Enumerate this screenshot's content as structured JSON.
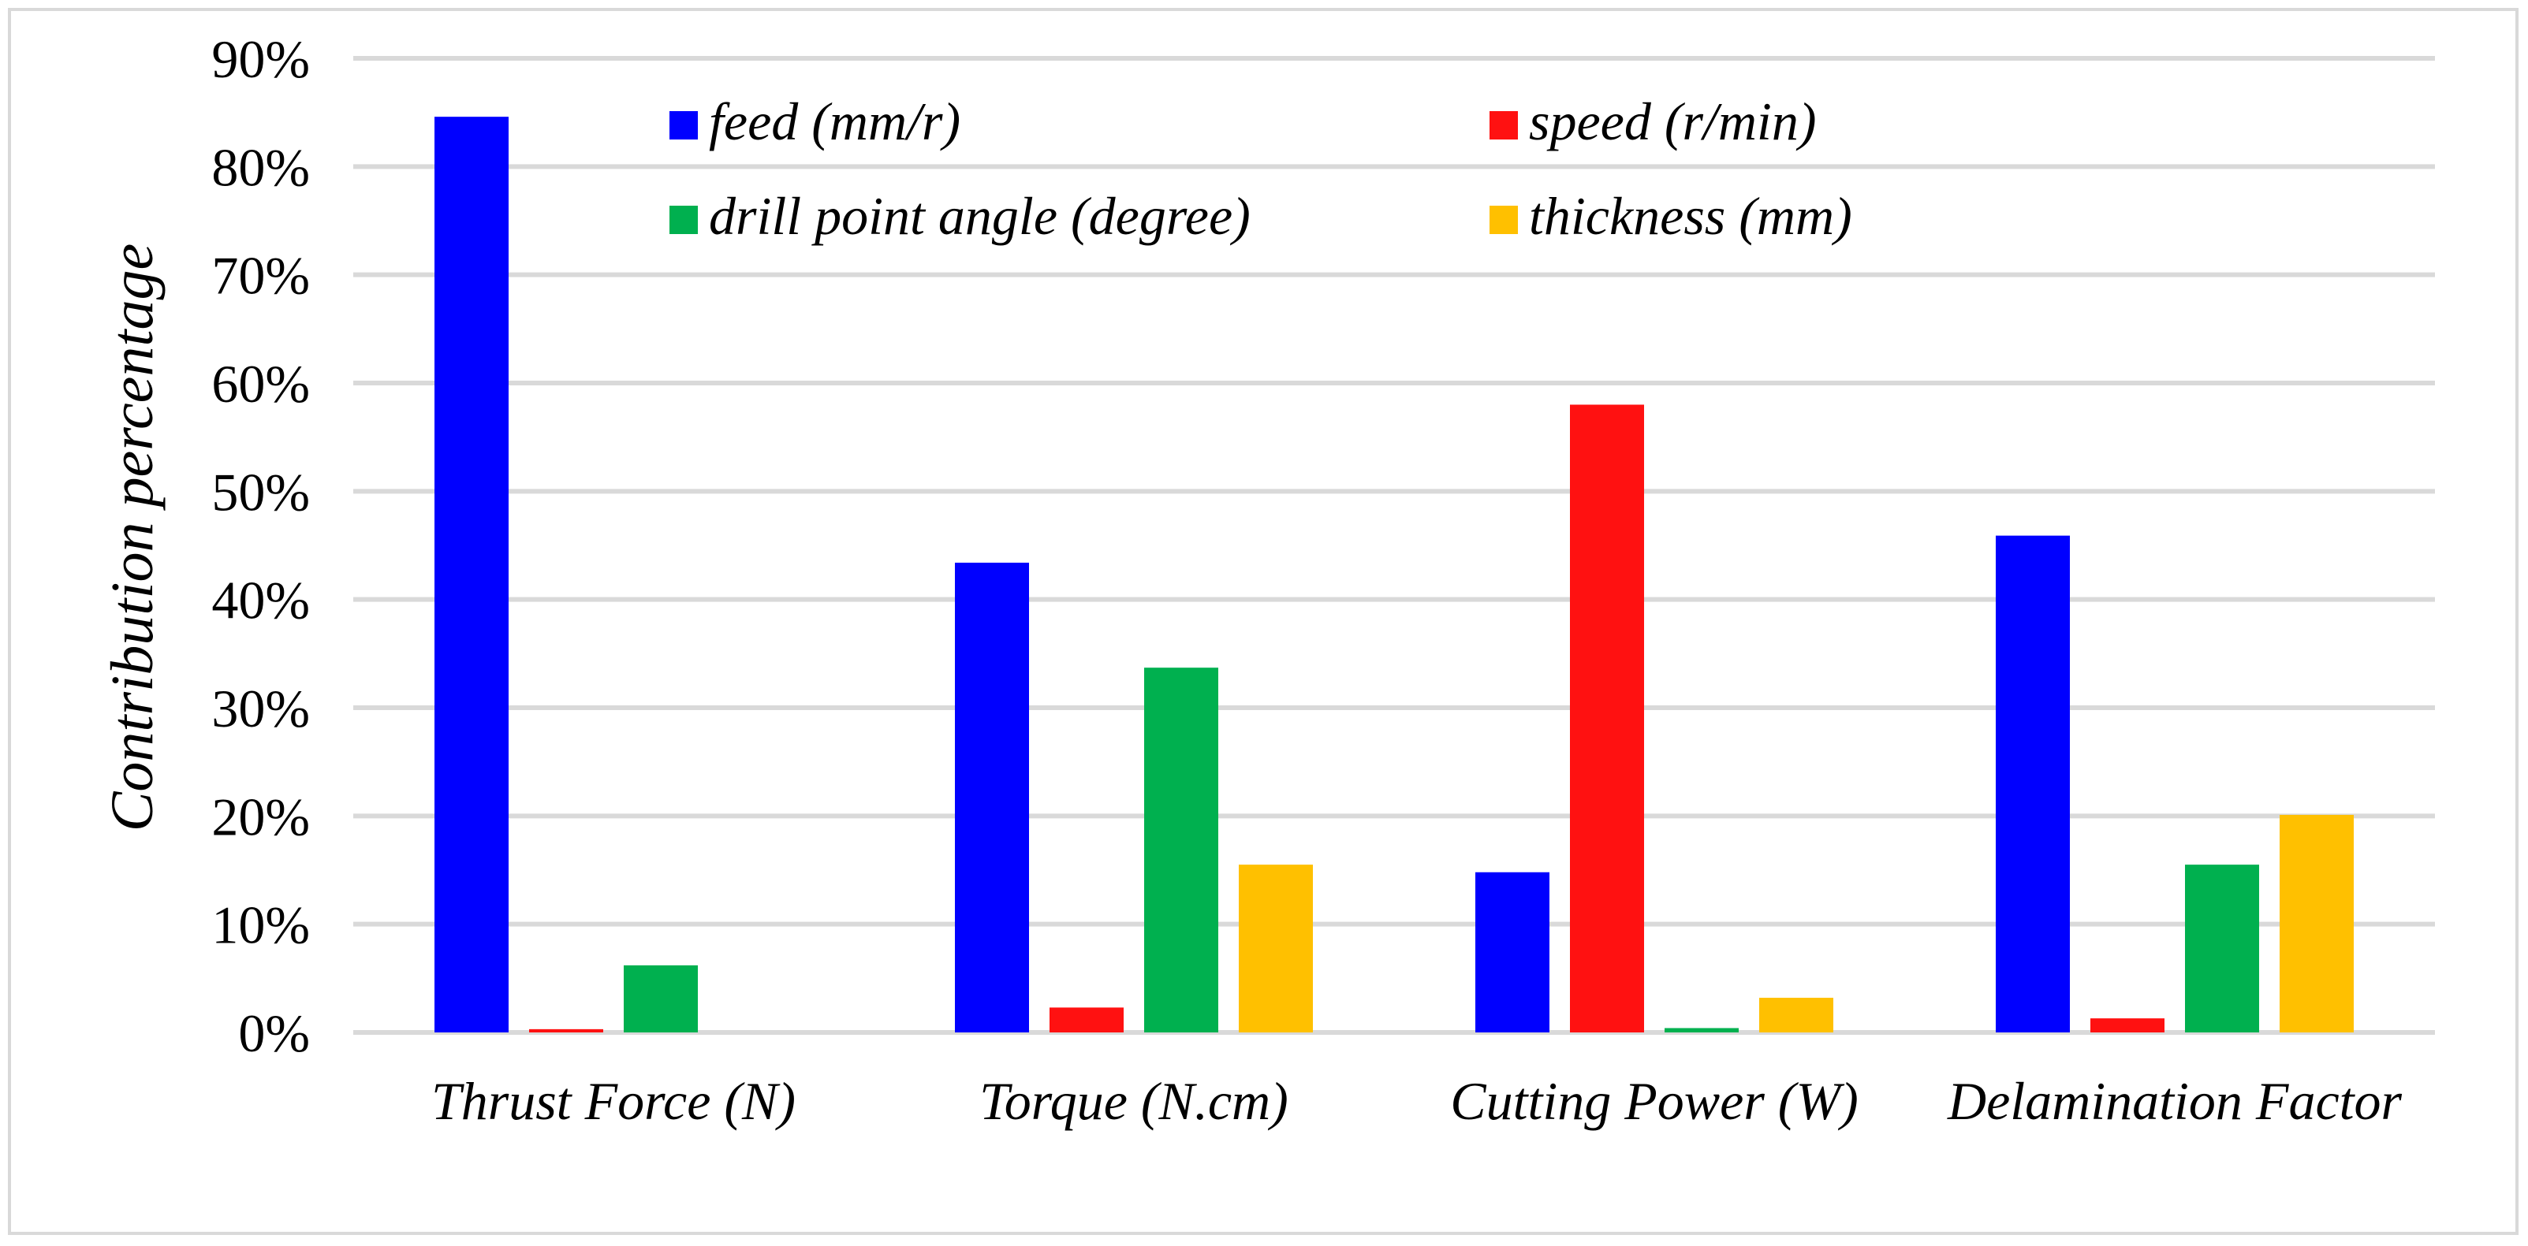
{
  "chart_data": {
    "type": "bar",
    "title": "",
    "xlabel": "",
    "ylabel": "Contribution percentage",
    "ylim": [
      0,
      90
    ],
    "yticks": [
      "0%",
      "10%",
      "20%",
      "30%",
      "40%",
      "50%",
      "60%",
      "70%",
      "80%",
      "90%"
    ],
    "grid": true,
    "legend_position": "top",
    "categories": [
      "Thrust Force (N)",
      "Torque (N.cm)",
      "Cutting Power (W)",
      "Delamination Factor"
    ],
    "series": [
      {
        "name": "feed (mm/r)",
        "color": "#0000ff",
        "values": [
          84.6,
          43.4,
          14.8,
          45.9
        ]
      },
      {
        "name": "speed (r/min)",
        "color": "#ff1111",
        "values": [
          0.3,
          2.3,
          58.0,
          1.3
        ]
      },
      {
        "name": "drill point angle (degree)",
        "color": "#00b04f",
        "values": [
          6.2,
          33.7,
          0.4,
          15.5
        ]
      },
      {
        "name": "thickness (mm)",
        "color": "#ffc000",
        "values": [
          0.0,
          15.5,
          3.2,
          20.1
        ]
      }
    ]
  }
}
